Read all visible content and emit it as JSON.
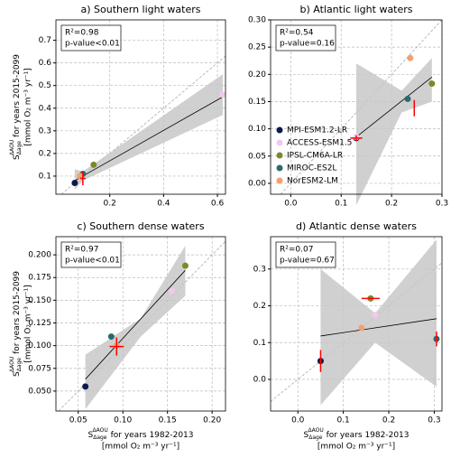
{
  "chart_data": [
    {
      "type": "scatter",
      "title": "a) Southern light waters",
      "r2": "R²=0.98",
      "pvalue": "p-value<0.01",
      "xlim": [
        0.0,
        0.63
      ],
      "ylim": [
        0.02,
        0.79
      ],
      "xticks": [
        0.2,
        0.4,
        0.6
      ],
      "yticks": [
        0.1,
        0.2,
        0.3,
        0.4,
        0.5,
        0.6,
        0.7
      ],
      "colors": [
        "#0d1b4b",
        "#f3c7f0",
        "#7a8a2a",
        "#2a6b6b",
        "#f5a070"
      ],
      "x": [
        0.07,
        0.62,
        0.14,
        0.1,
        0.09
      ],
      "y": [
        0.07,
        0.46,
        0.15,
        0.11,
        0.1
      ],
      "fit": {
        "x": [
          0.07,
          0.62
        ],
        "y": [
          0.08,
          0.45
        ]
      },
      "band": {
        "x": [
          0.07,
          0.1,
          0.62
        ],
        "lower": [
          0.04,
          0.08,
          0.37
        ],
        "upper": [
          0.13,
          0.12,
          0.55
        ]
      },
      "obs": {
        "x": [
          0.1
        ],
        "y": [
          0.09
        ],
        "xerr": [
          0.01
        ],
        "yerr": [
          0.03
        ]
      },
      "ylabel": {
        "symbol": "S",
        "sup": "ΔAOU",
        "sub": "Δage",
        "text": " for years 2015-2099",
        "units": "[mmol O₂ m⁻³ yr⁻¹]"
      }
    },
    {
      "type": "scatter",
      "title": "b) Atlantic light waters",
      "r2": "R²=0.54",
      "pvalue": "p-value=0.16",
      "xlim": [
        -0.04,
        0.3
      ],
      "ylim": [
        -0.02,
        0.3
      ],
      "xticks": [
        {
          "value": 0.0,
          "label": "0.0"
        },
        0.1,
        0.2,
        0.3
      ],
      "yticks": [
        {
          "value": 0.0,
          "label": "0.00"
        },
        0.05,
        {
          "value": 0.1,
          "label": "0.10"
        },
        0.15,
        {
          "value": 0.2,
          "label": "0.20"
        },
        0.25,
        {
          "value": 0.3,
          "label": "0.30"
        }
      ],
      "colors": [
        "#0d1b4b",
        "#f3c7f0",
        "#7a8a2a",
        "#2a6b6b",
        "#f5a070"
      ],
      "x": [
        0.13,
        0.13,
        0.28,
        0.232,
        0.237
      ],
      "y": [
        0.083,
        0.085,
        0.183,
        0.155,
        0.23
      ],
      "fit": {
        "x": [
          0.13,
          0.28
        ],
        "y": [
          0.085,
          0.195
        ]
      },
      "band": {
        "x": [
          0.13,
          0.22,
          0.28
        ],
        "lower": [
          -0.04,
          0.13,
          0.15
        ],
        "upper": [
          0.22,
          0.17,
          0.23
        ]
      },
      "obs": {
        "x": [
          0.13,
          0.245
        ],
        "y": [
          0.083,
          0.138
        ],
        "xerr": [
          0.012,
          0
        ],
        "yerr": [
          0.005,
          0.015
        ]
      },
      "legend": "lower left",
      "legend_labels": [
        "MPI-ESM1.2-LR",
        "ACCESS-ESM1.5",
        "IPSL-CM6A-LR",
        "MIROC-ES2L",
        "NorESM2-LM"
      ]
    },
    {
      "type": "scatter",
      "title": "c) Southern dense waters",
      "r2": "R²=0.97",
      "pvalue": "p-value<0.01",
      "xlim": [
        0.025,
        0.215
      ],
      "ylim": [
        0.028,
        0.22
      ],
      "xticks": [
        0.05,
        {
          "value": 0.1,
          "label": "0.10"
        },
        0.15,
        {
          "value": 0.2,
          "label": "0.20"
        }
      ],
      "yticks": [
        {
          "value": 0.05,
          "label": "0.050"
        },
        0.075,
        {
          "value": 0.1,
          "label": "0.100"
        },
        0.125,
        {
          "value": 0.15,
          "label": "0.150"
        },
        0.175,
        {
          "value": 0.2,
          "label": "0.200"
        }
      ],
      "colors": [
        "#0d1b4b",
        "#f3c7f0",
        "#7a8a2a",
        "#2a6b6b",
        "#f5a070"
      ],
      "x": [
        0.058,
        0.155,
        0.17,
        0.087,
        0.093
      ],
      "y": [
        0.055,
        0.16,
        0.188,
        0.11,
        0.1
      ],
      "fit": {
        "x": [
          0.058,
          0.17
        ],
        "y": [
          0.063,
          0.183
        ]
      },
      "band": {
        "x": [
          0.058,
          0.12,
          0.17
        ],
        "lower": [
          0.03,
          0.11,
          0.155
        ],
        "upper": [
          0.09,
          0.13,
          0.21
        ]
      },
      "obs": {
        "x": [
          0.093
        ],
        "y": [
          0.099
        ],
        "xerr": [
          0.008
        ],
        "yerr": [
          0.01
        ]
      },
      "ylabel": {
        "symbol": "S",
        "sup": "ΔAOU",
        "sub": "Δage",
        "text": " for years 2015-2099",
        "units": "[mmol O₂ m⁻³ yr⁻¹]"
      },
      "xlabel": {
        "symbol": "S",
        "sup": "ΔAOU",
        "sub": "Δage",
        "text": " for years 1982-2013",
        "units": "[mmol O₂ m⁻³ yr⁻¹]"
      }
    },
    {
      "type": "scatter",
      "title": "d) Atlantic dense waters",
      "r2": "R²=0.07",
      "pvalue": "p-value=0.67",
      "xlim": [
        -0.06,
        0.317
      ],
      "ylim": [
        -0.086,
        0.388
      ],
      "xticks": [
        {
          "value": 0.0,
          "label": "0.0"
        },
        0.1,
        0.2,
        0.3
      ],
      "yticks": [
        {
          "value": 0.0,
          "label": "0.0"
        },
        0.1,
        0.2,
        0.3
      ],
      "colors": [
        "#0d1b4b",
        "#f3c7f0",
        "#7a8a2a",
        "#2a6b6b",
        "#f5a070"
      ],
      "x": [
        0.05,
        0.17,
        0.16,
        0.305,
        0.14
      ],
      "y": [
        0.05,
        0.175,
        0.22,
        0.11,
        0.14
      ],
      "fit": {
        "x": [
          0.05,
          0.305
        ],
        "y": [
          0.118,
          0.165
        ]
      },
      "band": {
        "x": [
          0.05,
          0.17,
          0.305
        ],
        "lower": [
          -0.07,
          0.1,
          -0.02
        ],
        "upper": [
          0.3,
          0.18,
          0.38
        ]
      },
      "obs": {
        "x": [
          0.05,
          0.16,
          0.305
        ],
        "y": [
          0.05,
          0.22,
          0.11
        ],
        "xerr": [
          0,
          0.02,
          0
        ],
        "yerr": [
          0.03,
          0,
          0.02
        ]
      },
      "xlabel": {
        "symbol": "S",
        "sup": "ΔAOU",
        "sub": "Δage",
        "text": " for years 1982-2013",
        "units": "[mmol O₂ m⁻³ yr⁻¹]"
      }
    }
  ]
}
